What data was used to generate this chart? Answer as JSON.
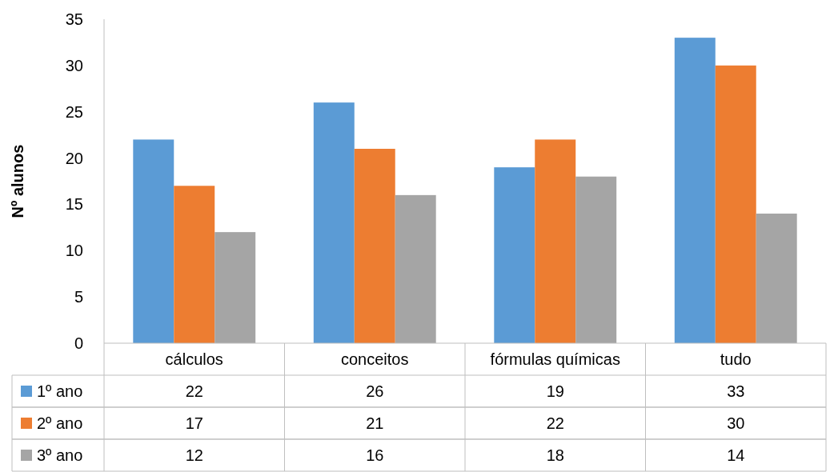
{
  "chart_data": {
    "type": "bar",
    "ylabel": "Nº alunos",
    "categories": [
      "cálculos",
      "conceitos",
      "fórmulas químicas",
      "tudo"
    ],
    "series": [
      {
        "name": "1º ano",
        "color": "#5b9bd5",
        "values": [
          22,
          26,
          19,
          33
        ]
      },
      {
        "name": "2º ano",
        "color": "#ed7d31",
        "values": [
          17,
          21,
          22,
          30
        ]
      },
      {
        "name": "3º ano",
        "color": "#a5a5a5",
        "values": [
          12,
          16,
          18,
          14
        ]
      }
    ],
    "ylim": [
      0,
      35
    ],
    "yticks": [
      0,
      5,
      10,
      15,
      20,
      25,
      30,
      35
    ],
    "grid": false,
    "legend": "bottom",
    "data_labels": true
  }
}
